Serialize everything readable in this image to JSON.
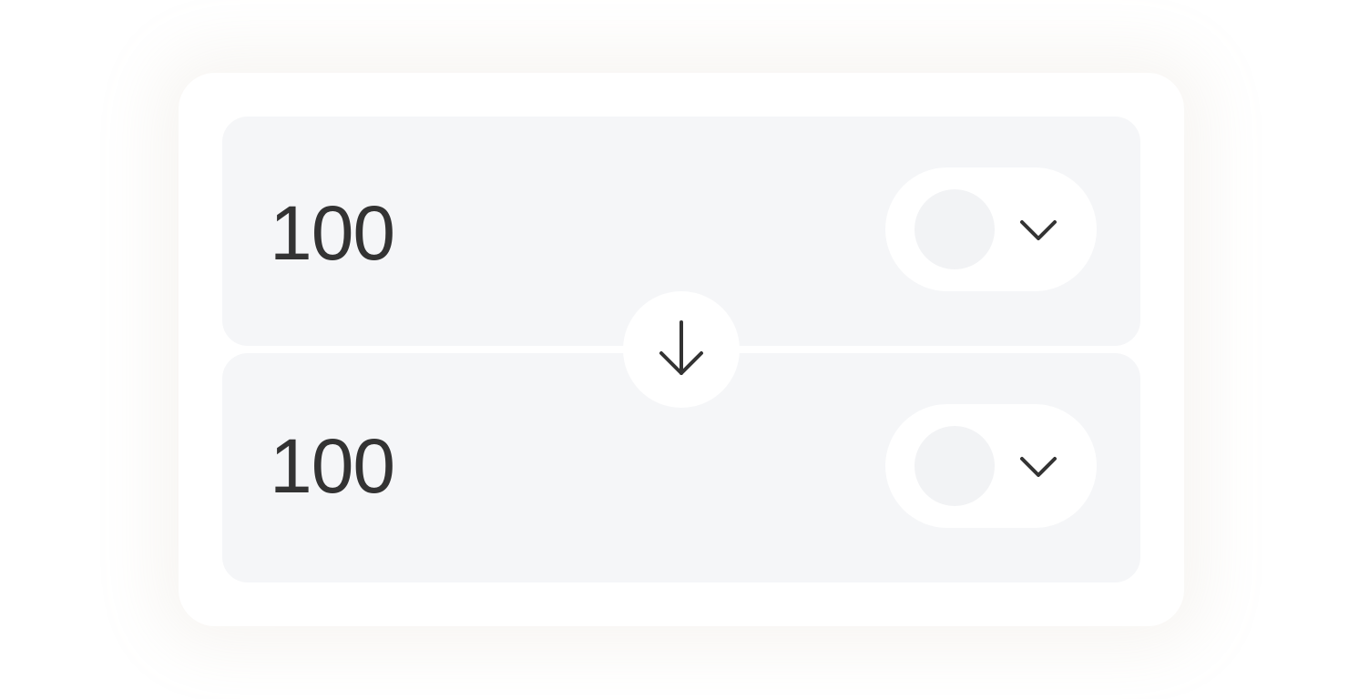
{
  "swap": {
    "from": {
      "amount": "100",
      "token_icon": "token-placeholder-circle",
      "selector_icon": "chevron-down-icon"
    },
    "to": {
      "amount": "100",
      "token_icon": "token-placeholder-circle",
      "selector_icon": "chevron-down-icon"
    },
    "swap_icon": "arrow-down-icon"
  },
  "colors": {
    "card_background": "#ffffff",
    "panel_background": "#f5f6f8",
    "text": "#333333",
    "token_placeholder": "#f2f3f5"
  }
}
